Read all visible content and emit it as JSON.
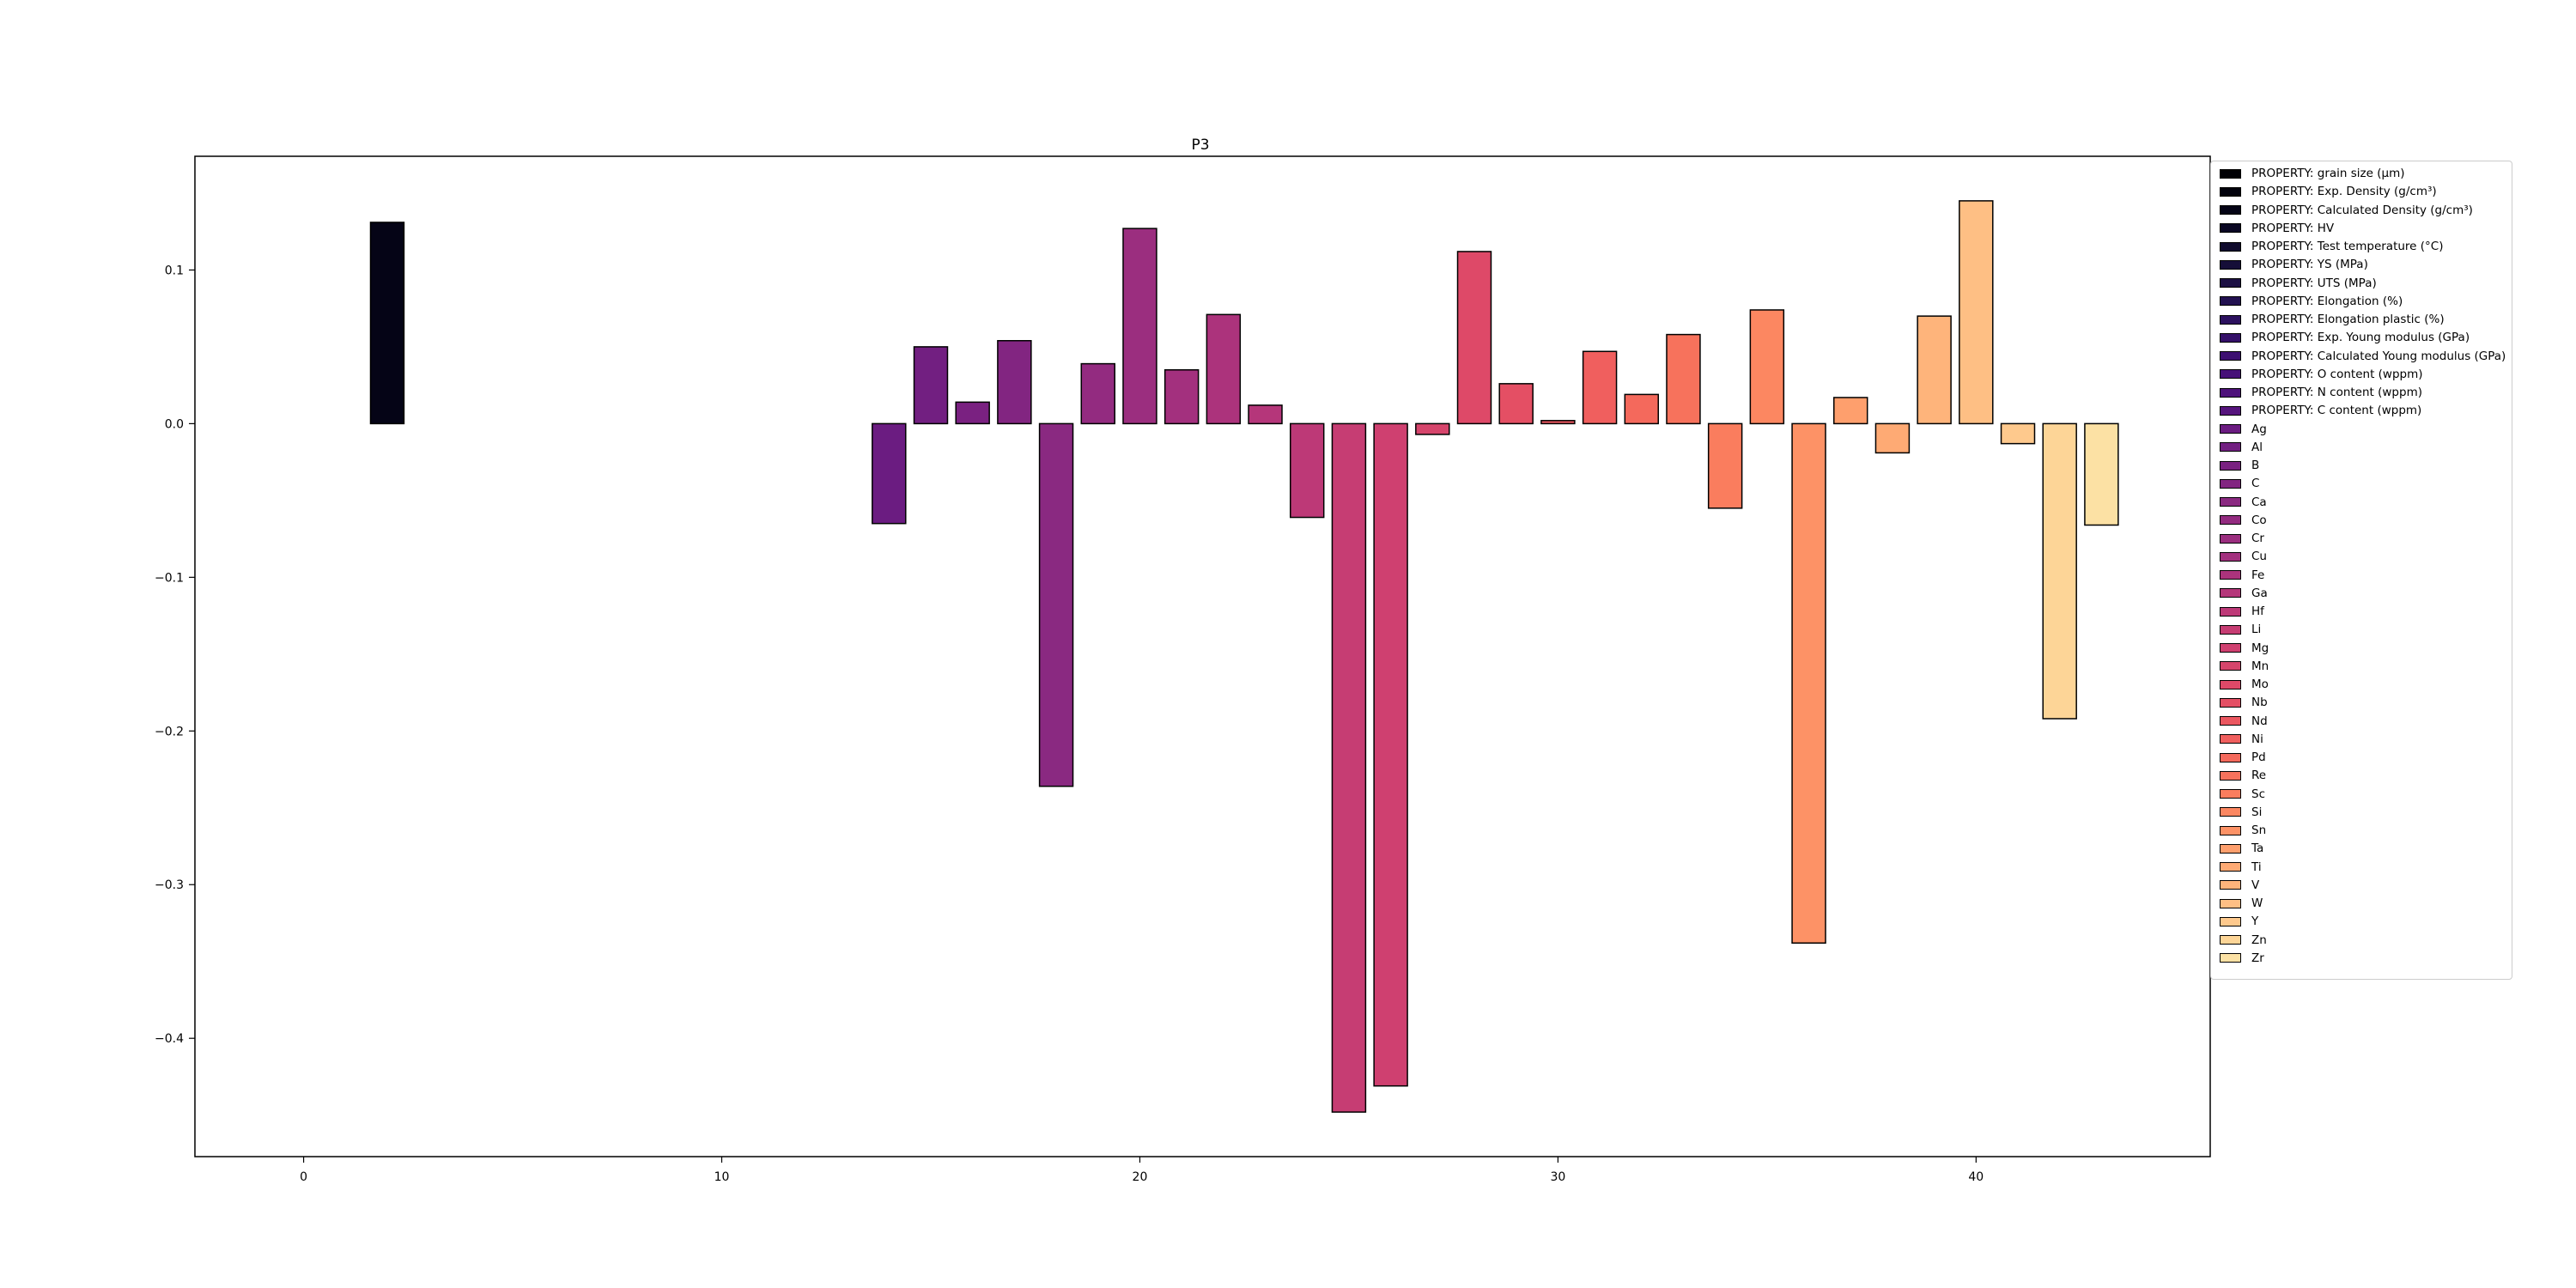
{
  "chart_data": {
    "type": "bar",
    "title": "P3",
    "xlabel": "",
    "ylabel": "",
    "xlim": [
      -2.6,
      45.6
    ],
    "ylim": [
      -0.477,
      0.174
    ],
    "x_ticks": [
      0,
      10,
      20,
      30,
      40
    ],
    "x_tick_labels": [
      "0",
      "10",
      "20",
      "30",
      "40"
    ],
    "y_ticks": [
      -0.4,
      -0.3,
      -0.2,
      -0.1,
      0.0,
      0.1
    ],
    "y_tick_labels": [
      "−0.4",
      "−0.3",
      "−0.2",
      "−0.1",
      "0.0",
      "0.1"
    ],
    "grid": false,
    "legend_position": "outside-right",
    "series": [
      {
        "name": "PROPERTY: grain size (μm)",
        "x": 0,
        "value": 0.0,
        "color": "#000004"
      },
      {
        "name": "PROPERTY: Exp. Density (g/cm³)",
        "x": 1,
        "value": 0.0,
        "color": "#02020c"
      },
      {
        "name": "PROPERTY: Calculated Density (g/cm³)",
        "x": 2,
        "value": 0.131,
        "color": "#050416"
      },
      {
        "name": "PROPERTY: HV",
        "x": 3,
        "value": 0.0,
        "color": "#0a0723"
      },
      {
        "name": "PROPERTY: Test temperature (°C)",
        "x": 4,
        "value": 0.0,
        "color": "#100b2d"
      },
      {
        "name": "PROPERTY: YS (MPa)",
        "x": 5,
        "value": 0.0,
        "color": "#150e38"
      },
      {
        "name": "PROPERTY: UTS (MPa)",
        "x": 6,
        "value": 0.0,
        "color": "#1c1044"
      },
      {
        "name": "PROPERTY: Elongation (%)",
        "x": 7,
        "value": 0.0,
        "color": "#221150"
      },
      {
        "name": "PROPERTY: Elongation plastic (%)",
        "x": 8,
        "value": 0.0,
        "color": "#2c115f"
      },
      {
        "name": "PROPERTY: Exp. Young modulus (GPa)",
        "x": 9,
        "value": 0.0,
        "color": "#341068"
      },
      {
        "name": "PROPERTY: Calculated Young modulus (GPa)",
        "x": 10,
        "value": 0.0,
        "color": "#3d0f71"
      },
      {
        "name": "PROPERTY: O content (wppm)",
        "x": 11,
        "value": 0.0,
        "color": "#461078"
      },
      {
        "name": "PROPERTY: N content (wppm)",
        "x": 12,
        "value": 0.0,
        "color": "#4e117b"
      },
      {
        "name": "PROPERTY: C content (wppm)",
        "x": 13,
        "value": 0.0,
        "color": "#56147d"
      },
      {
        "name": "Ag",
        "x": 14,
        "value": -0.065,
        "color": "#6b1c81"
      },
      {
        "name": "Al",
        "x": 15,
        "value": 0.05,
        "color": "#721f81"
      },
      {
        "name": "B",
        "x": 16,
        "value": 0.014,
        "color": "#7a2181"
      },
      {
        "name": "C",
        "x": 17,
        "value": 0.054,
        "color": "#822581"
      },
      {
        "name": "Ca",
        "x": 18,
        "value": -0.236,
        "color": "#8a2981"
      },
      {
        "name": "Co",
        "x": 19,
        "value": 0.039,
        "color": "#932b80"
      },
      {
        "name": "Cr",
        "x": 20,
        "value": 0.127,
        "color": "#9b2e7f"
      },
      {
        "name": "Cu",
        "x": 21,
        "value": 0.035,
        "color": "#a3307e"
      },
      {
        "name": "Fe",
        "x": 22,
        "value": 0.071,
        "color": "#ac337c"
      },
      {
        "name": "Ga",
        "x": 23,
        "value": 0.012,
        "color": "#b5367a"
      },
      {
        "name": "Hf",
        "x": 24,
        "value": -0.061,
        "color": "#bd3977"
      },
      {
        "name": "Li",
        "x": 25,
        "value": -0.448,
        "color": "#c63d73"
      },
      {
        "name": "Mg",
        "x": 26,
        "value": -0.431,
        "color": "#cf4070"
      },
      {
        "name": "Mn",
        "x": 27,
        "value": -0.007,
        "color": "#d6456c"
      },
      {
        "name": "Mo",
        "x": 28,
        "value": 0.112,
        "color": "#de4968"
      },
      {
        "name": "Nb",
        "x": 29,
        "value": 0.026,
        "color": "#e44f64"
      },
      {
        "name": "Nd",
        "x": 30,
        "value": 0.002,
        "color": "#eb5760"
      },
      {
        "name": "Ni",
        "x": 31,
        "value": 0.047,
        "color": "#f05f5e"
      },
      {
        "name": "Pd",
        "x": 32,
        "value": 0.019,
        "color": "#f4695c"
      },
      {
        "name": "Re",
        "x": 33,
        "value": 0.058,
        "color": "#f7725c"
      },
      {
        "name": "Sc",
        "x": 34,
        "value": -0.055,
        "color": "#fa7d5e"
      },
      {
        "name": "Si",
        "x": 35,
        "value": 0.074,
        "color": "#fc8761"
      },
      {
        "name": "Sn",
        "x": 36,
        "value": -0.338,
        "color": "#fd9266"
      },
      {
        "name": "Ta",
        "x": 37,
        "value": 0.017,
        "color": "#fe9f6d"
      },
      {
        "name": "Ti",
        "x": 38,
        "value": -0.019,
        "color": "#feaa74"
      },
      {
        "name": "V",
        "x": 39,
        "value": 0.07,
        "color": "#feb47b"
      },
      {
        "name": "W",
        "x": 40,
        "value": 0.145,
        "color": "#febf84"
      },
      {
        "name": "Y",
        "x": 41,
        "value": -0.013,
        "color": "#fec98d"
      },
      {
        "name": "Zn",
        "x": 42,
        "value": -0.192,
        "color": "#fdd597"
      },
      {
        "name": "Zr",
        "x": 43,
        "value": -0.066,
        "color": "#fce1a4"
      }
    ]
  }
}
